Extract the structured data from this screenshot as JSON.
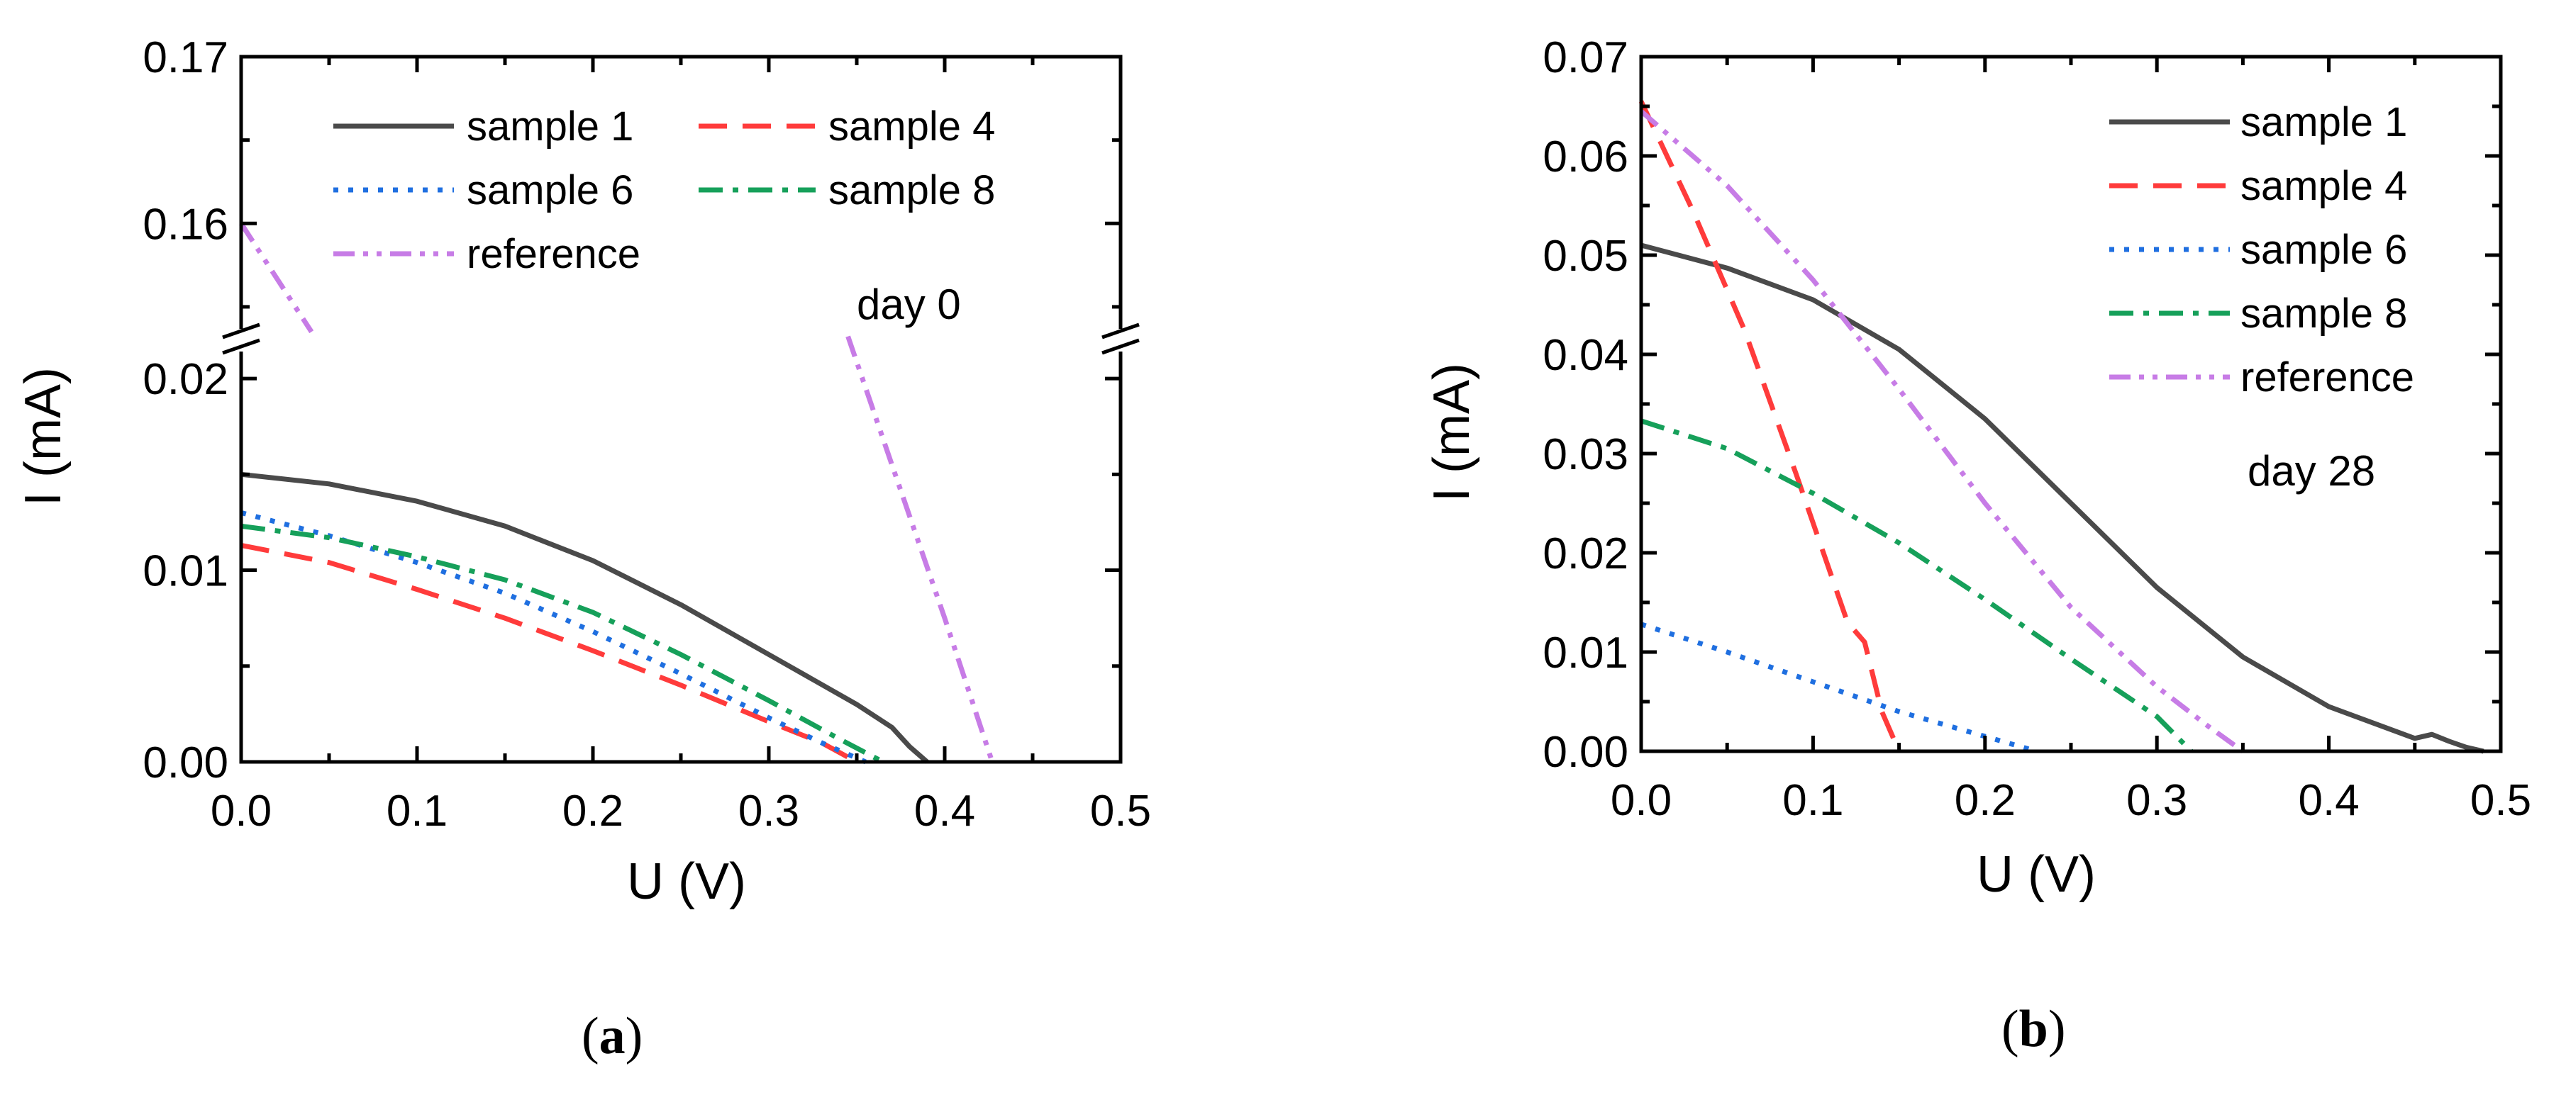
{
  "chart_data": [
    {
      "type": "line",
      "panel_label": "a",
      "xlabel": "U (V)",
      "ylabel": "I (mA)",
      "xlim": [
        0.0,
        0.5
      ],
      "xticks": [
        "0.0",
        "0.1",
        "0.2",
        "0.3",
        "0.4",
        "0.5"
      ],
      "y_axis_break": true,
      "ylim_lower": [
        0.0,
        0.022
      ],
      "ylim_upper": [
        0.153,
        0.17
      ],
      "yticks_lower": [
        "0.00",
        "0.01",
        "0.02"
      ],
      "yticks_upper": [
        "0.16",
        "0.17"
      ],
      "annotation": "day 0",
      "colors": {
        "sample1": "#4a4a4a",
        "sample4": "#ff3b3b",
        "sample6": "#1f6fe0",
        "sample8": "#16a05a",
        "reference": "#c77ce6"
      },
      "series": [
        {
          "name": "sample 1",
          "key": "sample1",
          "x": [
            0.0,
            0.05,
            0.1,
            0.15,
            0.2,
            0.25,
            0.3,
            0.35,
            0.37,
            0.38,
            0.385,
            0.39
          ],
          "y": [
            0.015,
            0.0145,
            0.0136,
            0.0123,
            0.0105,
            0.0082,
            0.0056,
            0.003,
            0.0018,
            0.0008,
            0.0004,
            0.0
          ]
        },
        {
          "name": "sample 4",
          "key": "sample4",
          "x": [
            0.0,
            0.05,
            0.1,
            0.15,
            0.2,
            0.25,
            0.3,
            0.33,
            0.35
          ],
          "y": [
            0.0113,
            0.0104,
            0.009,
            0.0075,
            0.0058,
            0.004,
            0.0021,
            0.001,
            0.0
          ]
        },
        {
          "name": "sample 6",
          "key": "sample6",
          "x": [
            0.0,
            0.05,
            0.1,
            0.15,
            0.2,
            0.25,
            0.3,
            0.33,
            0.355
          ],
          "y": [
            0.013,
            0.0118,
            0.0104,
            0.0088,
            0.0068,
            0.0046,
            0.0023,
            0.001,
            0.0
          ]
        },
        {
          "name": "sample 8",
          "key": "sample8",
          "x": [
            0.0,
            0.05,
            0.1,
            0.15,
            0.2,
            0.25,
            0.3,
            0.34,
            0.365
          ],
          "y": [
            0.0123,
            0.0117,
            0.0107,
            0.0095,
            0.0078,
            0.0056,
            0.0032,
            0.0012,
            0.0
          ]
        },
        {
          "name": "reference",
          "key": "reference",
          "segments": [
            {
              "axis": "upper",
              "x": [
                0.0,
                0.04
              ],
              "y": [
                0.16,
                0.1535
              ]
            },
            {
              "axis": "lower",
              "x": [
                0.345,
                0.37,
                0.4,
                0.427
              ],
              "y": [
                0.0222,
                0.0155,
                0.0075,
                0.0
              ]
            }
          ]
        }
      ],
      "legend": {
        "layout": "top, two columns",
        "entries": [
          "sample 1",
          "sample 4",
          "sample 6",
          "sample 8",
          "reference"
        ]
      },
      "caption": "(a)"
    },
    {
      "type": "line",
      "panel_label": "b",
      "xlabel": "U (V)",
      "ylabel": "I (mA)",
      "xlim": [
        0.0,
        0.5
      ],
      "ylim": [
        0.0,
        0.07
      ],
      "xticks": [
        "0.0",
        "0.1",
        "0.2",
        "0.3",
        "0.4",
        "0.5"
      ],
      "yticks": [
        "0.00",
        "0.01",
        "0.02",
        "0.03",
        "0.04",
        "0.05",
        "0.06",
        "0.07"
      ],
      "annotation": "day 28",
      "colors": {
        "sample1": "#4a4a4a",
        "sample4": "#ff3b3b",
        "sample6": "#1f6fe0",
        "sample8": "#16a05a",
        "reference": "#c77ce6"
      },
      "series": [
        {
          "name": "sample 1",
          "key": "sample1",
          "x": [
            0.0,
            0.05,
            0.1,
            0.15,
            0.2,
            0.25,
            0.3,
            0.35,
            0.4,
            0.45,
            0.46,
            0.47,
            0.48,
            0.49
          ],
          "y": [
            0.051,
            0.0487,
            0.0455,
            0.0405,
            0.0335,
            0.025,
            0.0165,
            0.0095,
            0.0045,
            0.0013,
            0.0017,
            0.001,
            0.0004,
            0.0
          ]
        },
        {
          "name": "sample 4",
          "key": "sample4",
          "x": [
            0.0,
            0.03,
            0.06,
            0.09,
            0.12,
            0.13,
            0.14,
            0.15
          ],
          "y": [
            0.0655,
            0.0545,
            0.0425,
            0.028,
            0.013,
            0.011,
            0.004,
            0.0
          ]
        },
        {
          "name": "sample 6",
          "key": "sample6",
          "x": [
            0.0,
            0.05,
            0.1,
            0.15,
            0.2,
            0.23
          ],
          "y": [
            0.0128,
            0.01,
            0.007,
            0.004,
            0.0015,
            0.0
          ]
        },
        {
          "name": "sample 8",
          "key": "sample8",
          "x": [
            0.0,
            0.05,
            0.1,
            0.15,
            0.2,
            0.25,
            0.3,
            0.32
          ],
          "y": [
            0.0333,
            0.0305,
            0.026,
            0.021,
            0.0153,
            0.0093,
            0.0035,
            0.0
          ]
        },
        {
          "name": "reference",
          "key": "reference",
          "x": [
            0.0,
            0.05,
            0.1,
            0.15,
            0.2,
            0.25,
            0.3,
            0.33,
            0.35
          ],
          "y": [
            0.0645,
            0.057,
            0.0475,
            0.0365,
            0.025,
            0.0145,
            0.0065,
            0.0025,
            0.0
          ]
        }
      ],
      "legend": {
        "layout": "top-right, one column",
        "entries": [
          "sample 1",
          "sample 4",
          "sample 6",
          "sample 8",
          "reference"
        ]
      },
      "caption": "(b)"
    }
  ]
}
